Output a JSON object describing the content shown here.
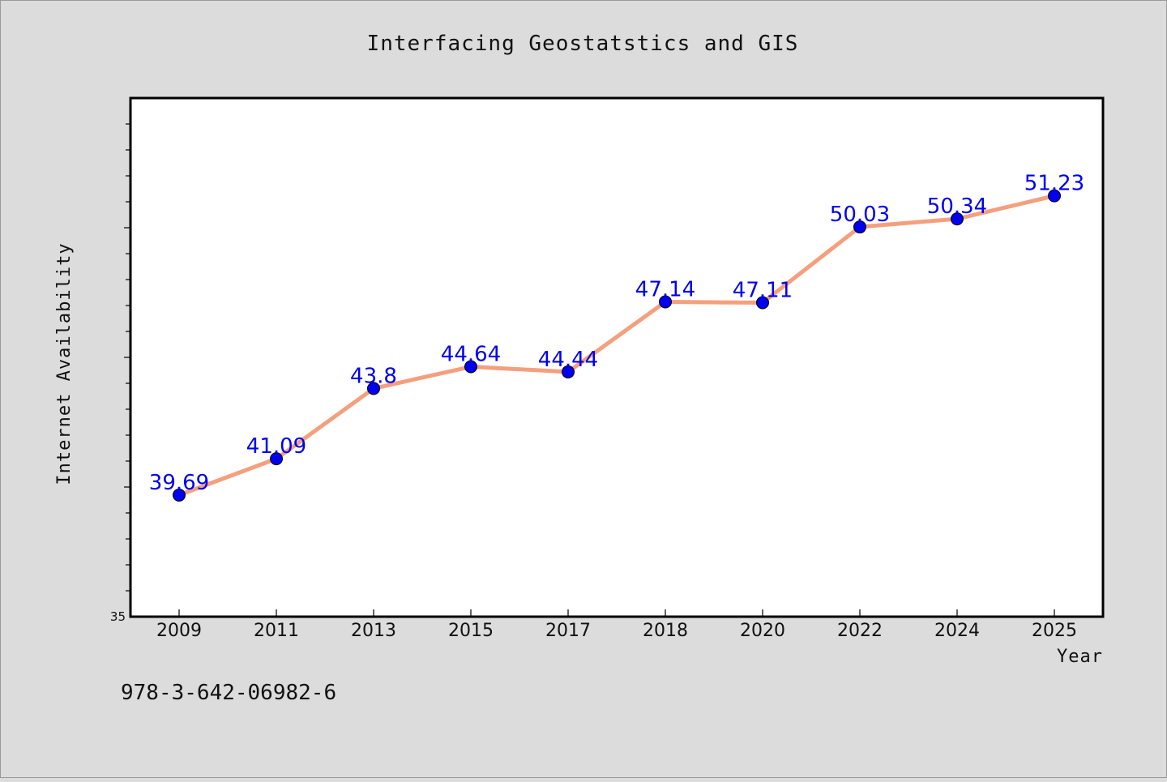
{
  "chart_data": {
    "type": "line",
    "title": "Interfacing Geostatstics and GIS",
    "xlabel": "Year",
    "ylabel": "Internet Availability",
    "categories": [
      "2009",
      "2011",
      "2013",
      "2015",
      "2017",
      "2018",
      "2020",
      "2022",
      "2024",
      "2025"
    ],
    "series": [
      {
        "values": [
          39.69,
          41.09,
          43.8,
          44.64,
          44.44,
          47.14,
          47.11,
          50.03,
          50.34,
          51.23
        ]
      }
    ],
    "data_labels": [
      "39.69",
      "41.09",
      "43.8",
      "44.64",
      "44.44",
      "47.14",
      "47.11",
      "50.03",
      "50.34",
      "51.23"
    ],
    "ylim": [
      35,
      55
    ],
    "y_tick_labels": [
      "35"
    ],
    "grid": false,
    "legend": "none",
    "colors": {
      "line": "#f4a07e",
      "marker": "#0000ee",
      "data_label": "#0000ee",
      "plot_background": "#ffffff",
      "figure_background": "#dcdcdc"
    }
  },
  "footer": {
    "text": "978-3-642-06982-6"
  }
}
